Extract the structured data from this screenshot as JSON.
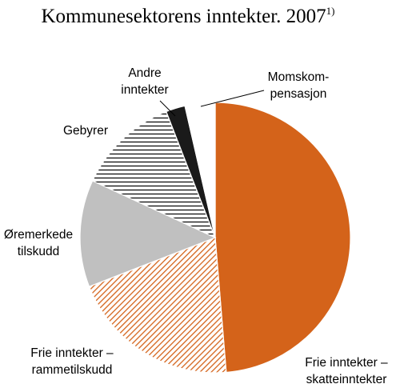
{
  "chart_data": {
    "type": "pie",
    "title": "Kommunesektorens inntekter. 2007",
    "title_footnote": "1)",
    "slices": [
      {
        "key": "skatt",
        "label_lines": [
          "Frie inntekter –",
          "skatteinntekter"
        ],
        "value": 48.7,
        "fill": "solid",
        "color": "#d4631a"
      },
      {
        "key": "ramme",
        "label_lines": [
          "Frie inntekter –",
          "rammetilskudd"
        ],
        "value": 20.4,
        "fill": "diagonal-hatch",
        "color": "#d4631a"
      },
      {
        "key": "oremerk",
        "label_lines": [
          "Øremerkede",
          "tilskudd"
        ],
        "value": 12.8,
        "fill": "solid",
        "color": "#c0c0c0"
      },
      {
        "key": "gebyr",
        "label_lines": [
          "Gebyrer"
        ],
        "value": 12.2,
        "fill": "horizontal-lines",
        "color": "#000000"
      },
      {
        "key": "andre",
        "label_lines": [
          "Andre",
          "inntekter"
        ],
        "value": 2.3,
        "fill": "solid",
        "color": "#1a1a1a"
      },
      {
        "key": "moms",
        "label_lines": [
          "Momskom-",
          "pensasjon"
        ],
        "value": 3.6,
        "fill": "solid",
        "color": "#ffffff"
      }
    ],
    "start_angle_deg": 0,
    "direction": "clockwise",
    "legend": "none"
  }
}
